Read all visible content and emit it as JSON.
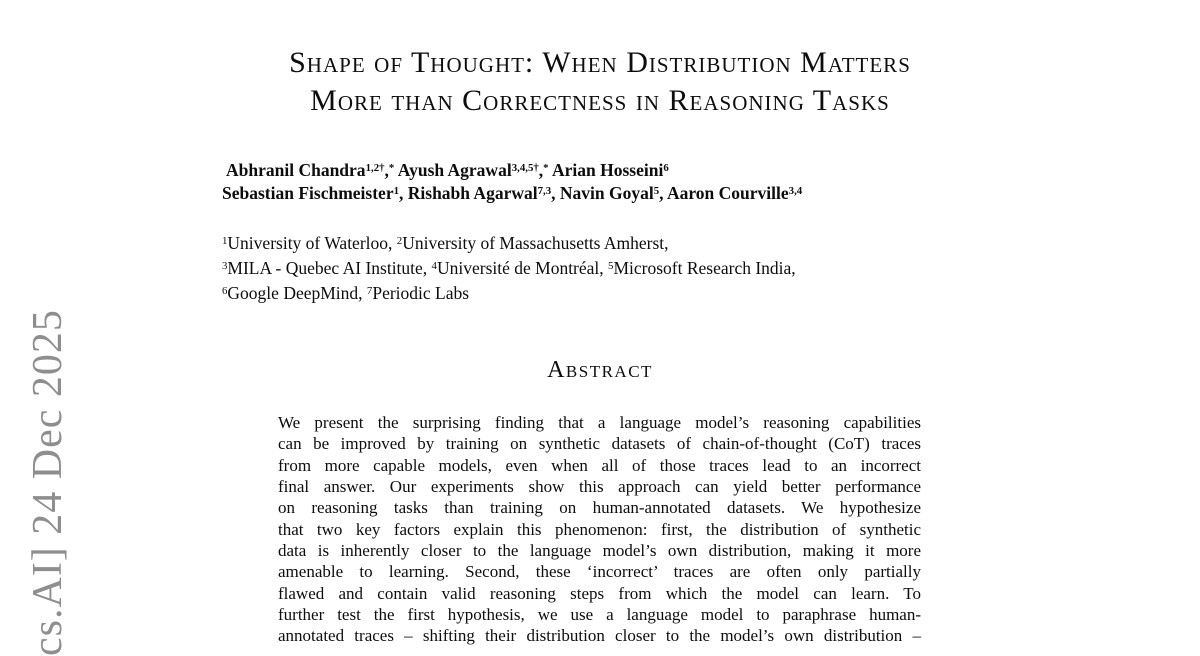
{
  "colors": {
    "background": "#ffffff",
    "text": "#0d0d0d",
    "watermark_gray": "#8e8e8e"
  },
  "watermark": {
    "text": "cs.AI] 24 Dec 2025"
  },
  "title": {
    "line1": "Shape of Thought: When Distribution Matters",
    "line2": "More than Correctness in Reasoning Tasks"
  },
  "authors": {
    "line1": [
      {
        "text": "Abhranil Chandra",
        "sup": false
      },
      {
        "text": "1,2†",
        "sup": true
      },
      {
        "text": ",",
        "sup": false
      },
      {
        "text": "*",
        "sup": true
      },
      {
        "text": " Ayush Agrawal",
        "sup": false
      },
      {
        "text": "3,4,5†",
        "sup": true
      },
      {
        "text": ",",
        "sup": false
      },
      {
        "text": "*",
        "sup": true
      },
      {
        "text": " Arian Hosseini",
        "sup": false
      },
      {
        "text": "6",
        "sup": true
      }
    ],
    "line2": [
      {
        "text": "Sebastian Fischmeister",
        "sup": false
      },
      {
        "text": "1",
        "sup": true
      },
      {
        "text": ", Rishabh Agarwal",
        "sup": false
      },
      {
        "text": "7,3",
        "sup": true
      },
      {
        "text": ", Navin Goyal",
        "sup": false
      },
      {
        "text": "5",
        "sup": true
      },
      {
        "text": ", Aaron Courville",
        "sup": false
      },
      {
        "text": "3,4",
        "sup": true
      }
    ]
  },
  "affiliations": [
    [
      {
        "text": "1",
        "sup": true
      },
      {
        "text": "University of Waterloo, ",
        "sup": false
      },
      {
        "text": "2",
        "sup": true
      },
      {
        "text": "University of Massachusetts Amherst,",
        "sup": false
      }
    ],
    [
      {
        "text": "3",
        "sup": true
      },
      {
        "text": "MILA - Quebec AI Institute, ",
        "sup": false
      },
      {
        "text": "4",
        "sup": true
      },
      {
        "text": "Université de Montréal, ",
        "sup": false
      },
      {
        "text": "5",
        "sup": true
      },
      {
        "text": "Microsoft Research India,",
        "sup": false
      }
    ],
    [
      {
        "text": "6",
        "sup": true
      },
      {
        "text": "Google DeepMind, ",
        "sup": false
      },
      {
        "text": "7",
        "sup": true
      },
      {
        "text": "Periodic Labs",
        "sup": false
      }
    ]
  ],
  "abstract": {
    "heading": "Abstract",
    "lines": [
      "We present the surprising finding that a language model’s reasoning capabilities",
      "can be improved by training on synthetic datasets of chain-of-thought (CoT) traces",
      "from more capable models, even when all of those traces lead to an incorrect",
      "final answer. Our experiments show this approach can yield better performance",
      "on reasoning tasks than training on human-annotated datasets. We hypothesize",
      "that two key factors explain this phenomenon: first, the distribution of synthetic",
      "data is inherently closer to the language model’s own distribution, making it more",
      "amenable to learning. Second, these ‘incorrect’ traces are often only partially",
      "flawed and contain valid reasoning steps from which the model can learn. To",
      "further test the first hypothesis, we use a language model to paraphrase human-",
      "annotated traces – shifting their distribution closer to the model’s own distribution –"
    ]
  }
}
